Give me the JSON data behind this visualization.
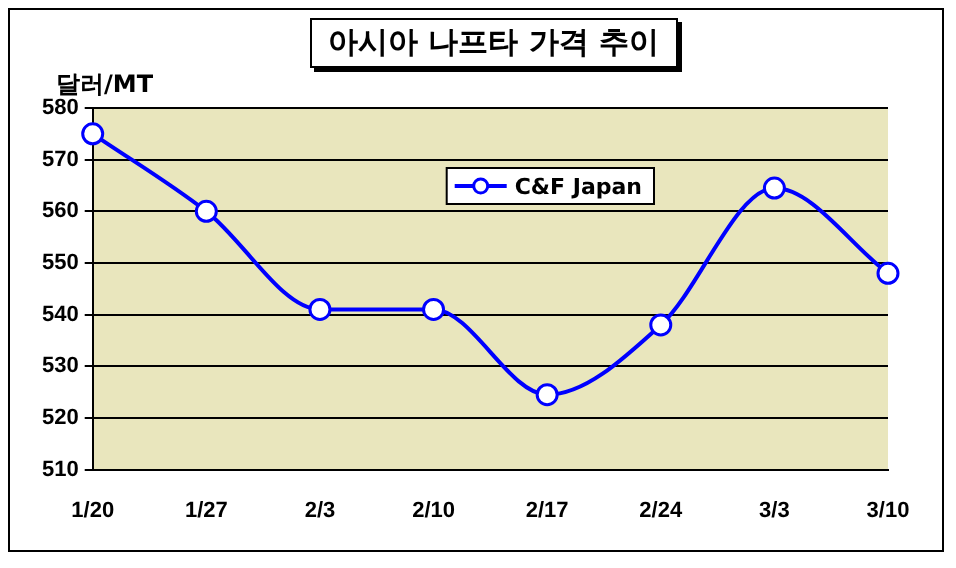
{
  "chart_data": {
    "type": "line",
    "title": "아시아 나프타 가격 추이",
    "ylabel": "달러/MT",
    "categories": [
      "1/20",
      "1/27",
      "2/3",
      "2/10",
      "2/17",
      "2/24",
      "3/3",
      "3/10"
    ],
    "series": [
      {
        "name": "C&F Japan",
        "color": "#0000ff",
        "values": [
          575,
          560,
          541,
          541,
          524.5,
          538,
          564.5,
          548
        ]
      }
    ],
    "ylim": [
      510,
      580
    ],
    "yticks": [
      510,
      520,
      530,
      540,
      550,
      560,
      570,
      580
    ],
    "grid": "y",
    "legend": "top",
    "marker": "circle",
    "line_style": "solid"
  }
}
